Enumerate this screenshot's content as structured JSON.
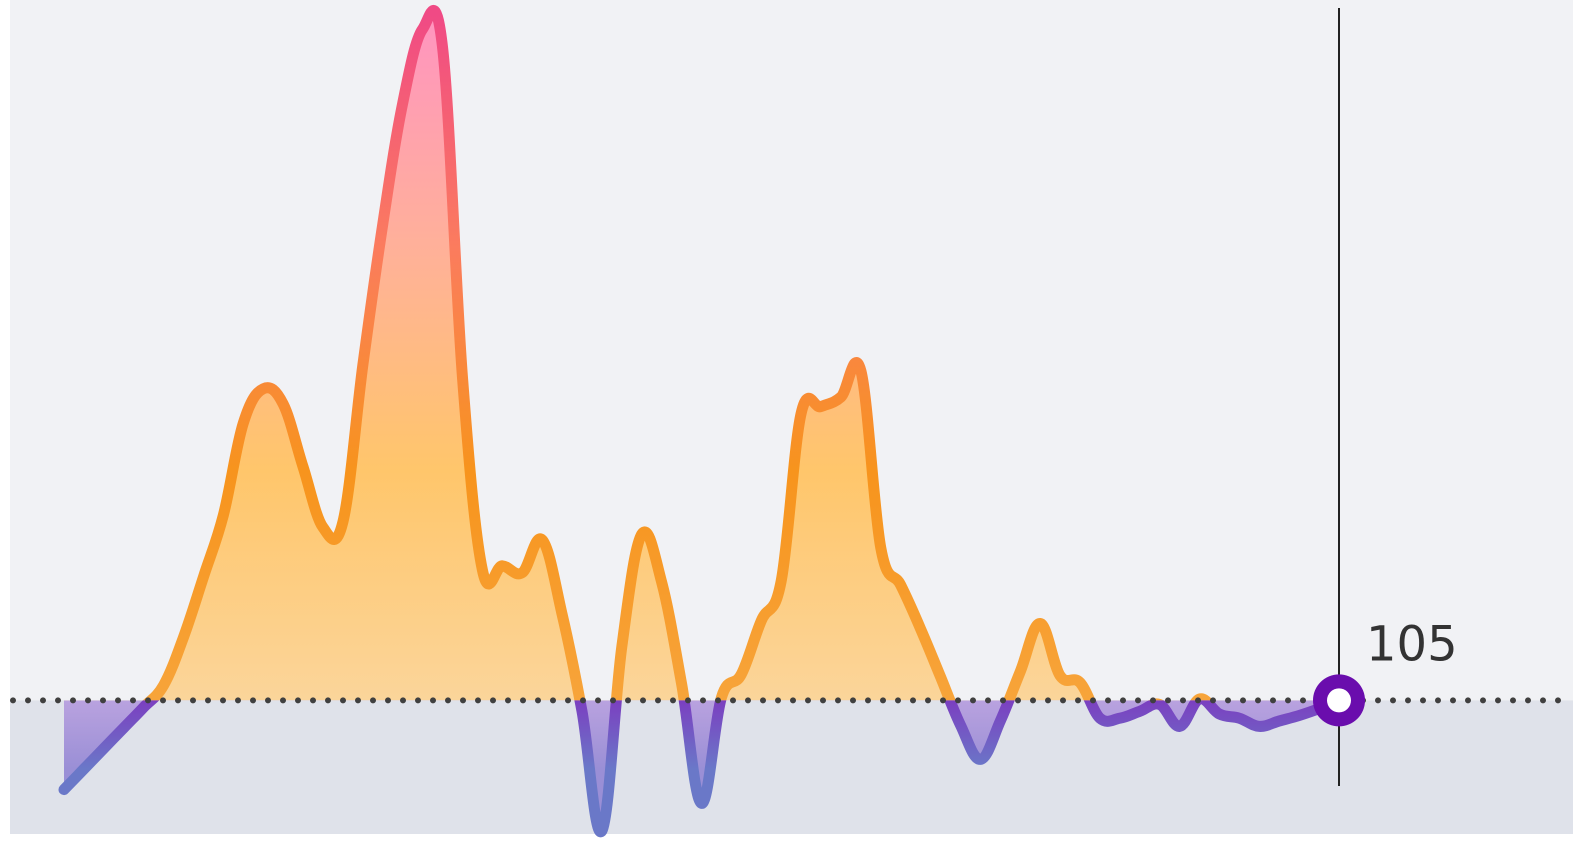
{
  "colors": {
    "bg_upper": "#f1f2f5",
    "bg_lower": "#dfe2ea",
    "baseline_dots": "#404040",
    "cursor_line": "#222222",
    "marker_ring": "#6a0dad",
    "marker_center": "#ffffff",
    "line_above": [
      "#f7a43a",
      "#f7941d",
      "#fb7b5f",
      "#f04a85"
    ],
    "line_below": [
      "#7b3fc0",
      "#6a78c8"
    ],
    "fill_above": [
      "#fbd59a",
      "#ffc66b",
      "#ffb09a",
      "#ff94c0"
    ],
    "fill_below": [
      "#b9a2df",
      "#9a8fd6"
    ]
  },
  "chart_data": {
    "type": "area",
    "title": "",
    "xlabel": "",
    "ylabel": "",
    "baseline": 105,
    "ylim": [
      55,
      110
    ],
    "x": [
      0,
      1,
      2,
      3,
      4,
      5,
      6,
      7,
      8,
      9,
      10,
      11,
      12,
      13,
      14,
      15,
      16,
      17,
      18,
      19,
      20,
      21,
      22,
      23,
      24,
      25,
      26,
      27,
      28,
      29,
      30,
      31,
      32,
      33,
      34,
      35,
      36,
      37,
      38,
      39,
      40,
      41,
      42,
      43,
      44,
      45,
      46,
      47,
      48,
      49,
      50,
      51,
      52,
      53,
      54,
      55,
      56,
      57,
      58,
      59,
      60,
      61,
      62,
      63,
      64
    ],
    "values": [
      111.5,
      110.0,
      108.5,
      107.0,
      105.5,
      103.9,
      100.4,
      96.0,
      91.5,
      84.8,
      82.3,
      83.4,
      88.0,
      92.4,
      92.0,
      80.6,
      70.3,
      61.5,
      56.1,
      57.4,
      81.4,
      95.5,
      95.2,
      95.7,
      93.3,
      98.7,
      105.8,
      114.5,
      101.1,
      92.9,
      96.4,
      103.8,
      112.5,
      104.8,
      103.1,
      99.2,
      96.3,
      84.1,
      83.6,
      82.9,
      81.0,
      93.9,
      96.6,
      99.8,
      103.3,
      106.8,
      109.3,
      106.5,
      102.9,
      99.4,
      103.2,
      103.7,
      106.3,
      106.3,
      105.8,
      105.3,
      106.9,
      104.9,
      106.0,
      106.3,
      106.9,
      106.5,
      106.1,
      105.6,
      105.0
    ],
    "current_value_label": "105"
  }
}
